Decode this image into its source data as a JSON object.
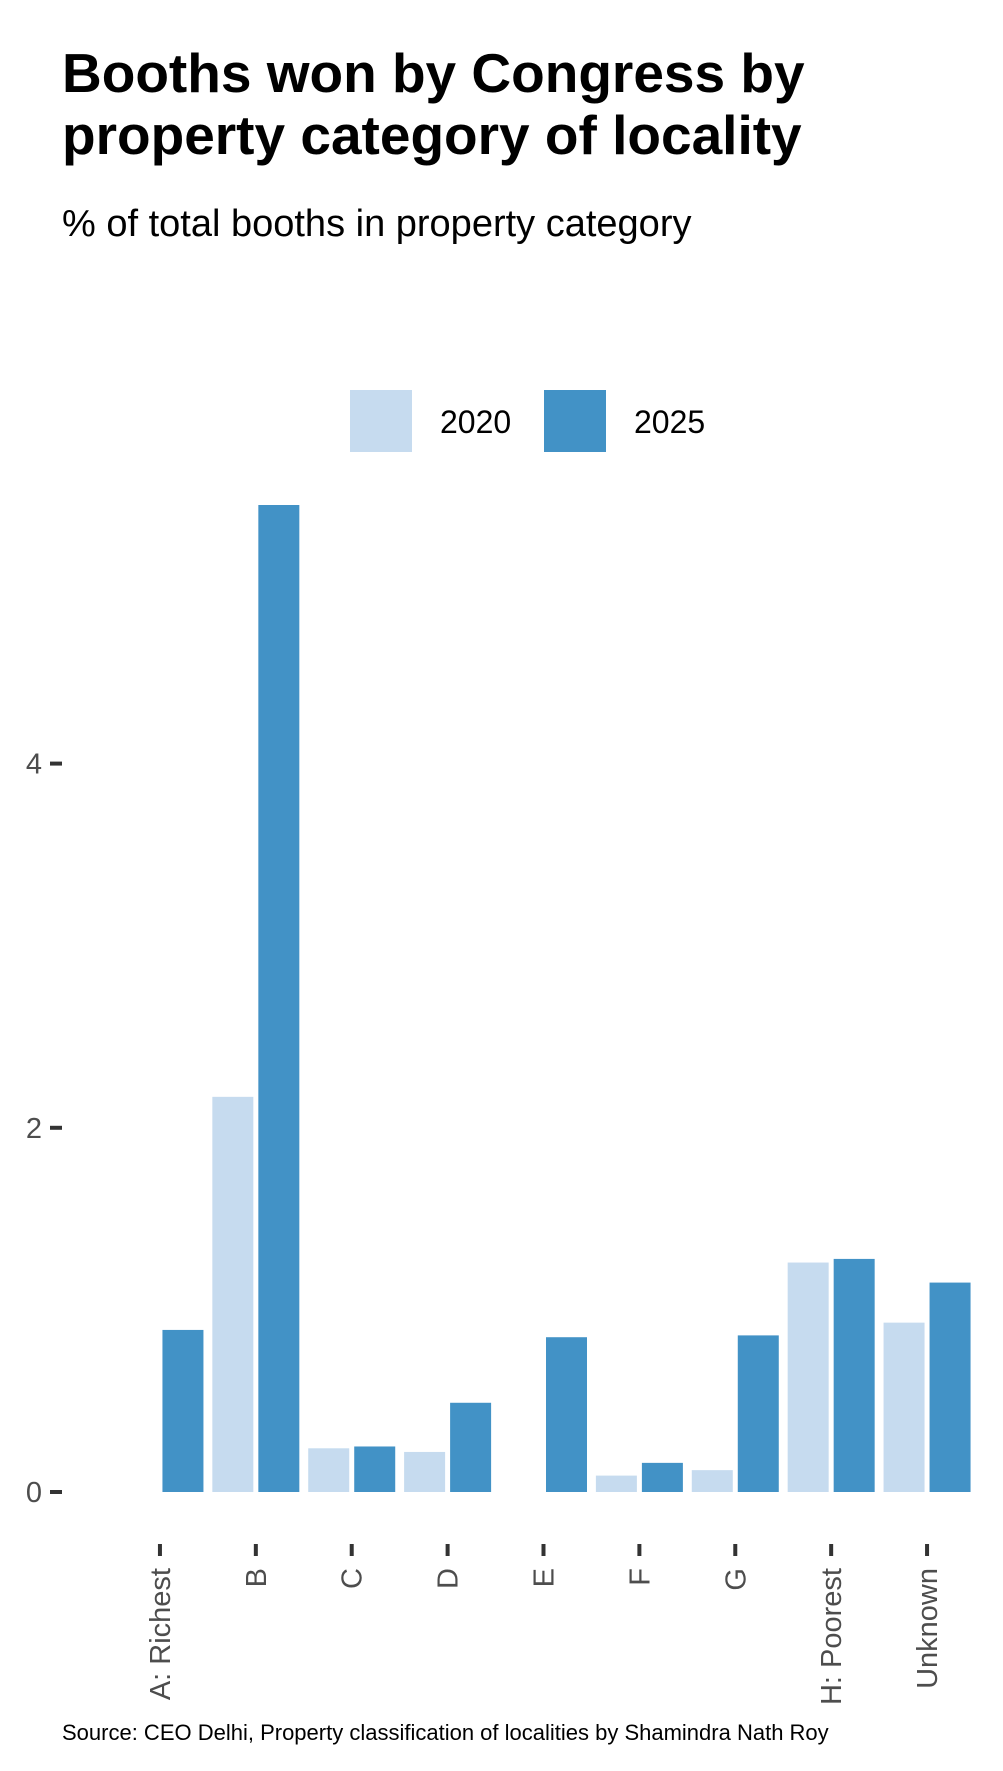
{
  "title": "Booths won by Congress by property category of locality",
  "subtitle": "% of total booths in property category",
  "source": "Source: CEO Delhi, Property classification of localities by Shamindra Nath Roy",
  "colors": {
    "series_2020": "#c6dbef",
    "series_2025": "#4292c6",
    "tick": "#333333",
    "tick_label": "#4d4d4d"
  },
  "chart_data": {
    "type": "bar",
    "title": "Booths won by Congress by property category of locality",
    "subtitle": "% of total booths in property category",
    "xlabel": "",
    "ylabel": "",
    "categories": [
      "A: Richest",
      "B",
      "C",
      "D",
      "E",
      "F",
      "G",
      "H: Poorest",
      "Unknown"
    ],
    "series": [
      {
        "name": "2020",
        "values": [
          0,
          2.17,
          0.24,
          0.22,
          0,
          0.09,
          0.12,
          1.26,
          0.93
        ]
      },
      {
        "name": "2025",
        "values": [
          0.89,
          5.42,
          0.25,
          0.49,
          0.85,
          0.16,
          0.86,
          1.28,
          1.15
        ]
      }
    ],
    "ylim": [
      0,
      5.42
    ],
    "yticks": [
      0,
      2,
      4
    ],
    "grid": false,
    "legend_position": "top"
  }
}
